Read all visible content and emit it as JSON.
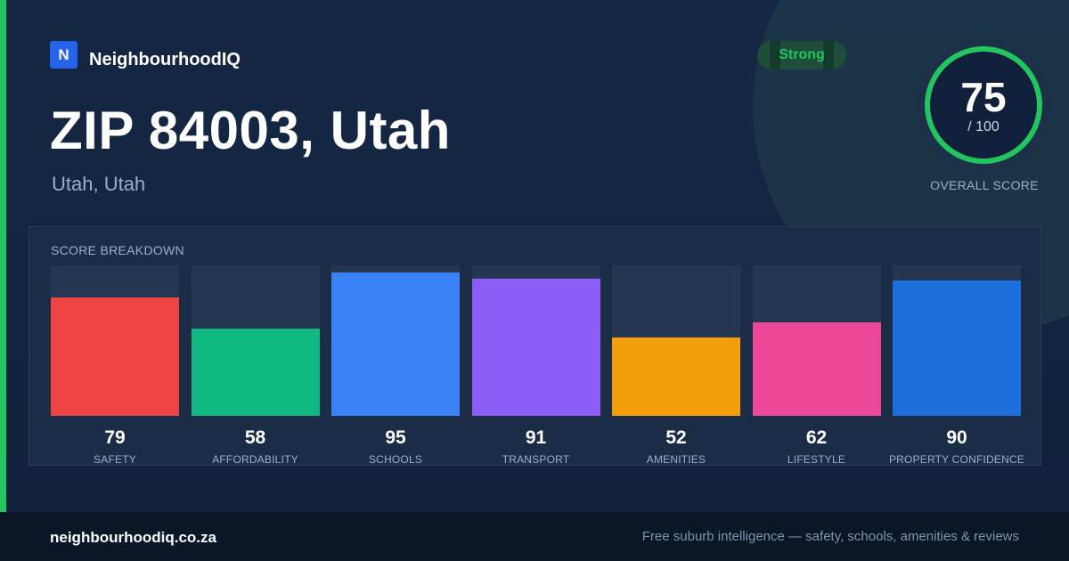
{
  "brand": {
    "logo_letter": "N",
    "name": "NeighbourhoodIQ"
  },
  "title": "ZIP 84003, Utah",
  "subtitle": "Utah, Utah",
  "badge": "Strong",
  "overall": {
    "score": 75,
    "max_label": "/ 100",
    "label": "OVERALL SCORE",
    "ring_color": "#22c55e"
  },
  "panel_title": "SCORE BREAKDOWN",
  "chart_data": {
    "type": "bar",
    "title": "SCORE BREAKDOWN",
    "categories": [
      "SAFETY",
      "AFFORDABILITY",
      "SCHOOLS",
      "TRANSPORT",
      "AMENITIES",
      "LIFESTYLE",
      "PROPERTY CONFIDENCE"
    ],
    "values": [
      79,
      58,
      95,
      91,
      52,
      62,
      90
    ],
    "colors": [
      "#ef4444",
      "#10b981",
      "#3b82f6",
      "#8b5cf6",
      "#f59e0b",
      "#ec4899",
      "#1d6fdc"
    ],
    "ylim": [
      0,
      100
    ],
    "grid": false,
    "legend": "none"
  },
  "footer": {
    "url": "neighbourhoodiq.co.za",
    "tagline": "Free suburb intelligence — safety, schools, amenities & reviews"
  }
}
